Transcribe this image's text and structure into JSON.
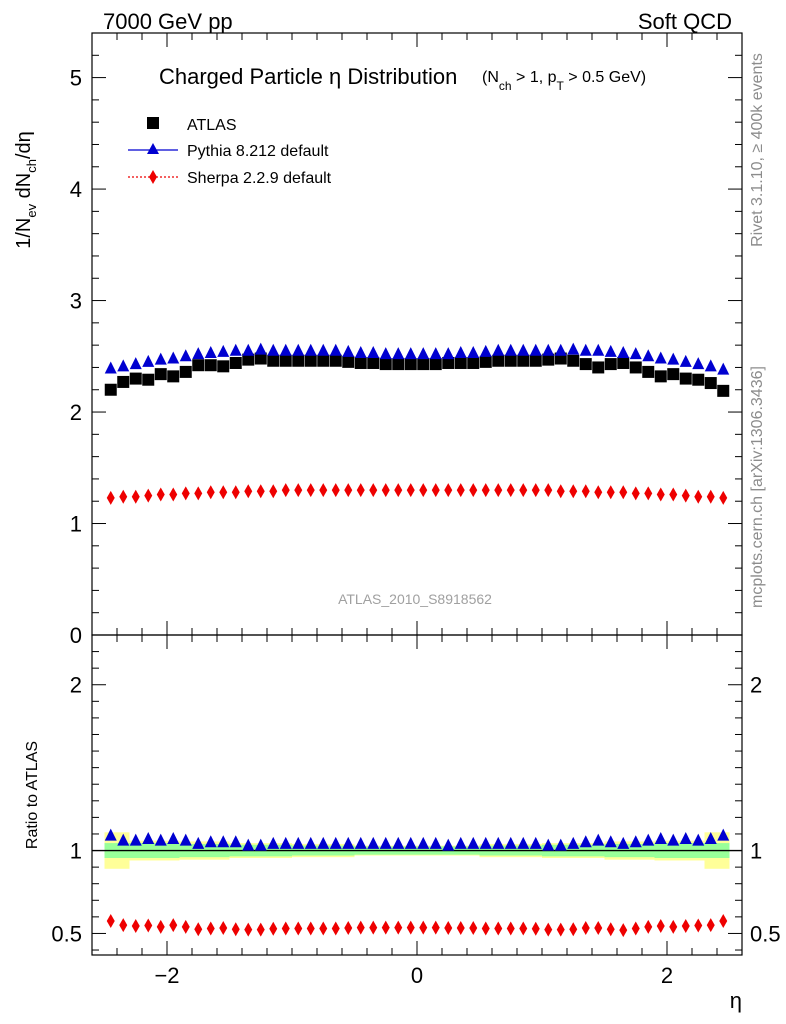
{
  "header": {
    "left": "7000 GeV pp",
    "right": "Soft QCD"
  },
  "side_labels": {
    "rivet": "Rivet 3.1.10, ≥ 400k events",
    "mcplots": "mcplots.cern.ch [arXiv:1306.3436]"
  },
  "chart_data": [
    {
      "type": "scatter",
      "panel": "main",
      "title": "Charged Particle η Distribution",
      "subtitle": "(N_ch > 1, p_T > 0.5 GeV)",
      "ylabel": "1/N_ev dN_ch/dη",
      "xlim": [
        -2.6,
        2.6
      ],
      "ylim": [
        0,
        5.4
      ],
      "yticks": [
        0,
        1,
        2,
        3,
        4,
        5
      ],
      "grid": false,
      "legend_position": "top-left",
      "analysis_id": "ATLAS_2010_S8918562",
      "x": [
        -2.45,
        -2.35,
        -2.25,
        -2.15,
        -2.05,
        -1.95,
        -1.85,
        -1.75,
        -1.65,
        -1.55,
        -1.45,
        -1.35,
        -1.25,
        -1.15,
        -1.05,
        -0.95,
        -0.85,
        -0.75,
        -0.65,
        -0.55,
        -0.45,
        -0.35,
        -0.25,
        -0.15,
        -0.05,
        0.05,
        0.15,
        0.25,
        0.35,
        0.45,
        0.55,
        0.65,
        0.75,
        0.85,
        0.95,
        1.05,
        1.15,
        1.25,
        1.35,
        1.45,
        1.55,
        1.65,
        1.75,
        1.85,
        1.95,
        2.05,
        2.15,
        2.25,
        2.35,
        2.45
      ],
      "series": [
        {
          "name": "ATLAS",
          "marker": "square",
          "color": "#000000",
          "values": [
            2.2,
            2.27,
            2.3,
            2.29,
            2.34,
            2.32,
            2.36,
            2.42,
            2.42,
            2.41,
            2.44,
            2.47,
            2.48,
            2.46,
            2.46,
            2.46,
            2.46,
            2.46,
            2.46,
            2.45,
            2.44,
            2.44,
            2.43,
            2.43,
            2.43,
            2.43,
            2.43,
            2.44,
            2.44,
            2.44,
            2.45,
            2.46,
            2.46,
            2.46,
            2.46,
            2.47,
            2.48,
            2.46,
            2.43,
            2.4,
            2.43,
            2.44,
            2.4,
            2.36,
            2.32,
            2.34,
            2.3,
            2.29,
            2.26,
            2.19
          ]
        },
        {
          "name": "Pythia 8.212 default",
          "marker": "triangle",
          "color": "#0000d0",
          "values": [
            2.39,
            2.41,
            2.43,
            2.45,
            2.47,
            2.48,
            2.5,
            2.52,
            2.53,
            2.54,
            2.55,
            2.55,
            2.56,
            2.55,
            2.55,
            2.55,
            2.55,
            2.55,
            2.55,
            2.54,
            2.53,
            2.53,
            2.52,
            2.52,
            2.52,
            2.52,
            2.52,
            2.52,
            2.53,
            2.53,
            2.54,
            2.55,
            2.55,
            2.55,
            2.55,
            2.55,
            2.55,
            2.56,
            2.55,
            2.55,
            2.54,
            2.53,
            2.52,
            2.5,
            2.48,
            2.47,
            2.45,
            2.43,
            2.41,
            2.38
          ]
        },
        {
          "name": "Sherpa 2.2.9 default",
          "marker": "diamond",
          "color": "#ee0000",
          "values": [
            1.23,
            1.24,
            1.24,
            1.25,
            1.26,
            1.26,
            1.27,
            1.27,
            1.28,
            1.28,
            1.28,
            1.29,
            1.29,
            1.29,
            1.3,
            1.3,
            1.3,
            1.3,
            1.3,
            1.3,
            1.3,
            1.3,
            1.3,
            1.3,
            1.3,
            1.3,
            1.3,
            1.3,
            1.3,
            1.3,
            1.3,
            1.3,
            1.3,
            1.3,
            1.3,
            1.3,
            1.29,
            1.29,
            1.29,
            1.28,
            1.28,
            1.28,
            1.27,
            1.27,
            1.26,
            1.26,
            1.25,
            1.24,
            1.24,
            1.23
          ]
        }
      ]
    },
    {
      "type": "scatter",
      "panel": "ratio",
      "ylabel": "Ratio to ATLAS",
      "xlabel": "η",
      "xlim": [
        -2.6,
        2.6
      ],
      "ylim": [
        0.37,
        2.3
      ],
      "yticks": [
        0.5,
        1,
        2
      ],
      "xticks": [
        -2,
        0,
        2
      ],
      "reference_line": 1,
      "bands": {
        "edges": [
          -2.5,
          -2.3,
          -1.9,
          -1.5,
          -1.0,
          -0.5,
          0.5,
          1.0,
          1.5,
          1.9,
          2.3,
          2.5
        ],
        "green_color": "#99ff99",
        "yellow_color": "#ffff99",
        "green_half": [
          0.045,
          0.045,
          0.04,
          0.035,
          0.03,
          0.025,
          0.03,
          0.035,
          0.04,
          0.045,
          0.045
        ],
        "yellow_half": [
          0.11,
          0.06,
          0.055,
          0.045,
          0.04,
          0.03,
          0.04,
          0.045,
          0.055,
          0.06,
          0.11
        ]
      },
      "series": [
        {
          "name": "Pythia 8.212 default",
          "marker": "triangle",
          "color": "#0000d0",
          "values": [
            1.09,
            1.06,
            1.06,
            1.07,
            1.06,
            1.07,
            1.06,
            1.04,
            1.05,
            1.05,
            1.05,
            1.03,
            1.03,
            1.04,
            1.04,
            1.04,
            1.04,
            1.04,
            1.04,
            1.04,
            1.04,
            1.04,
            1.04,
            1.04,
            1.04,
            1.04,
            1.04,
            1.03,
            1.04,
            1.04,
            1.04,
            1.04,
            1.04,
            1.04,
            1.04,
            1.03,
            1.03,
            1.04,
            1.05,
            1.06,
            1.05,
            1.04,
            1.05,
            1.06,
            1.07,
            1.06,
            1.07,
            1.06,
            1.07,
            1.09
          ]
        },
        {
          "name": "Sherpa 2.2.9 default",
          "marker": "diamond",
          "color": "#ee0000",
          "values": [
            0.575,
            0.55,
            0.545,
            0.548,
            0.54,
            0.55,
            0.54,
            0.525,
            0.53,
            0.533,
            0.525,
            0.523,
            0.523,
            0.528,
            0.53,
            0.53,
            0.53,
            0.53,
            0.53,
            0.533,
            0.535,
            0.535,
            0.535,
            0.535,
            0.535,
            0.535,
            0.535,
            0.533,
            0.533,
            0.533,
            0.53,
            0.53,
            0.53,
            0.53,
            0.528,
            0.523,
            0.523,
            0.525,
            0.533,
            0.533,
            0.525,
            0.52,
            0.53,
            0.54,
            0.545,
            0.54,
            0.545,
            0.548,
            0.55,
            0.575
          ]
        }
      ]
    }
  ]
}
